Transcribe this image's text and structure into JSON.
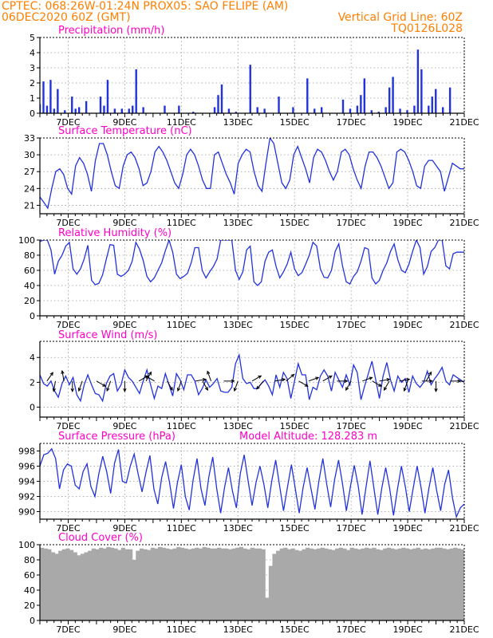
{
  "header": {
    "line1": "CPTEC:   068:26W-01:24N   PROX05: SAO FELIPE (AM)",
    "line2": "06DEC2020 60Z (GMT)",
    "right2": "Vertical Grid Line: 60Z",
    "right3": "TQ0126L028"
  },
  "colors": {
    "header": "#ff7f00",
    "title": "#ff00c8",
    "line": "#2233dd",
    "bar": "#2233dd",
    "cloud": "#a9a9a9",
    "grid": "#999999"
  },
  "x_axis": {
    "ticks": [
      {
        "pos": 1,
        "label": "7DEC"
      },
      {
        "pos": 3,
        "label": "9DEC"
      },
      {
        "pos": 5,
        "label": "11DEC"
      },
      {
        "pos": 7,
        "label": "13DEC"
      },
      {
        "pos": 9,
        "label": "15DEC"
      },
      {
        "pos": 11,
        "label": "17DEC"
      },
      {
        "pos": 13,
        "label": "19DEC"
      },
      {
        "pos": 15,
        "label": "21DEC"
      }
    ],
    "range_days": [
      0,
      15
    ]
  },
  "chart_data": [
    {
      "type": "bar",
      "title": "Precipitation (mm/h)",
      "ylim": [
        0,
        5
      ],
      "yticks": [
        "0",
        "1",
        "2",
        "3",
        "4",
        "5"
      ],
      "yticks_v": [
        0,
        1,
        2,
        3,
        4,
        5
      ],
      "values_at_6h": [
        0.6,
        2.1,
        0.5,
        2.2,
        0.3,
        1.6,
        0,
        0.2,
        0,
        1.1,
        0.3,
        0.4,
        0,
        0.8,
        0,
        0,
        0,
        1.1,
        0.5,
        2.2,
        0,
        0.3,
        0,
        0.3,
        0,
        0.3,
        0.5,
        2.9,
        0,
        0.4,
        0,
        0,
        0,
        0,
        0,
        0.5,
        0,
        0,
        0,
        0.5,
        0,
        0,
        0,
        0.1,
        0,
        0,
        0,
        0,
        0,
        0.4,
        1.2,
        1.9,
        0,
        0.3,
        0,
        0.1,
        0,
        0,
        0,
        3.2,
        0,
        0.4,
        0,
        0.3,
        0,
        0,
        0,
        1.1,
        0,
        0,
        0,
        0.4,
        0,
        0,
        0,
        2.3,
        0,
        0.3,
        0,
        0.4,
        0,
        0,
        0,
        0,
        0,
        0.9,
        0,
        0.3,
        0,
        0.5,
        1.2,
        2.3,
        0,
        0.2,
        0,
        0.1,
        0,
        0.4,
        1.7,
        2.4,
        0,
        0.3,
        0,
        0.2,
        0,
        0.5,
        4.2,
        2.9,
        0,
        0.5,
        1.1,
        1.6,
        0,
        0.4,
        0,
        1.7,
        0,
        0,
        0,
        0
      ]
    },
    {
      "type": "line",
      "title": "Surface Temperature (nC)",
      "ylim": [
        19.5,
        33
      ],
      "yticks": [
        "21",
        "24",
        "27",
        "30",
        "33"
      ],
      "yticks_v": [
        21,
        24,
        27,
        30,
        33
      ],
      "values_at_6h": [
        22.5,
        21.5,
        20.5,
        24,
        27,
        27.5,
        26.5,
        24,
        23,
        28,
        29.5,
        28.5,
        26.5,
        23.5,
        29,
        32,
        32,
        30,
        27,
        24.5,
        24,
        28,
        30,
        30.5,
        29.5,
        27.5,
        24.5,
        25,
        27,
        30.5,
        31.5,
        30.5,
        29,
        27,
        25,
        24,
        26.5,
        30,
        31,
        30,
        28,
        25.5,
        24,
        24,
        30,
        30.5,
        28.5,
        26.5,
        25,
        23,
        28.5,
        30,
        31,
        30.5,
        27,
        24.5,
        23.5,
        28.5,
        33,
        32,
        28.5,
        25,
        24,
        25.5,
        30,
        31.5,
        29.5,
        27.5,
        25,
        29.5,
        31,
        30.5,
        29,
        27,
        25.5,
        27,
        30.5,
        31,
        30,
        27.5,
        25.5,
        24,
        28,
        30.5,
        30.5,
        29.5,
        28,
        26,
        24,
        25,
        30.5,
        31,
        30.5,
        29,
        27,
        24.5,
        24,
        28,
        29,
        29,
        28,
        27,
        23.5,
        26,
        28.5,
        28,
        27.5,
        27.5
      ]
    },
    {
      "type": "line",
      "title": "Relative Humidity (%)",
      "ylim": [
        0,
        100
      ],
      "yticks": [
        "0",
        "20",
        "40",
        "60",
        "80",
        "100"
      ],
      "yticks_v": [
        0,
        20,
        40,
        60,
        80,
        100
      ],
      "values_at_6h": [
        98,
        100,
        100,
        87,
        55,
        72,
        80,
        92,
        97,
        62,
        55,
        62,
        75,
        93,
        47,
        41,
        43,
        54,
        75,
        94,
        93,
        55,
        52,
        55,
        60,
        72,
        97,
        88,
        73,
        52,
        45,
        50,
        60,
        70,
        86,
        100,
        84,
        55,
        49,
        52,
        56,
        70,
        90,
        90,
        60,
        50,
        58,
        65,
        75,
        100,
        100,
        100,
        100,
        60,
        48,
        58,
        87,
        92,
        45,
        40,
        45,
        72,
        84,
        87,
        65,
        50,
        58,
        68,
        84,
        62,
        53,
        57,
        68,
        80,
        97,
        92,
        62,
        51,
        50,
        60,
        85,
        95,
        66,
        45,
        42,
        52,
        58,
        72,
        90,
        88,
        50,
        42,
        47,
        60,
        70,
        85,
        95,
        74,
        60,
        57,
        68,
        85,
        100,
        90,
        55,
        65,
        85,
        90,
        100,
        100,
        66,
        62,
        82,
        84,
        84,
        84
      ]
    },
    {
      "type": "line",
      "title": "Surface Wind (m/s)",
      "ylim": [
        -0.8,
        5.3
      ],
      "yticks": [
        "0",
        "2",
        "4"
      ],
      "yticks_v": [
        0,
        2,
        4
      ],
      "values_at_6h": [
        2.6,
        1.9,
        1.7,
        2.1,
        1.3,
        0.8,
        1.9,
        2.5,
        1.8,
        2.4,
        1.0,
        0.5,
        1.8,
        2.6,
        1.8,
        1.1,
        1.0,
        0.5,
        1.9,
        2.5,
        2.7,
        1.3,
        1.8,
        3.0,
        2.4,
        2.1,
        1.6,
        1.1,
        2.1,
        3.0,
        1.8,
        0.7,
        1.7,
        1.5,
        2.7,
        1.8,
        0.9,
        2.7,
        2.2,
        1.4,
        2.6,
        2.6,
        2.1,
        1.0,
        1.5,
        2.2,
        1.6,
        1.9,
        2.3,
        1.3,
        1.2,
        1.2,
        1.6,
        3.5,
        4.2,
        2.3,
        1.9,
        2.0,
        1.5,
        1.5,
        1.9,
        2.2,
        1.7,
        1.0,
        2.6,
        1.6,
        2.8,
        2.3,
        0.7,
        2.1,
        3.5,
        2.6,
        2.6,
        0.6,
        1.6,
        1.4,
        2.5,
        3.0,
        2.5,
        1.3,
        2.8,
        2.2,
        1.6,
        2.6,
        1.8,
        3.4,
        2.8,
        0.6,
        1.7,
        2.7,
        3.7,
        2.2,
        0.7,
        2.5,
        3.6,
        2.2,
        1.3,
        2.5,
        2.0,
        2.3,
        1.2,
        2.5,
        1.9,
        1.6,
        2.0,
        2.9,
        1.8,
        2.3,
        2.7,
        3.2,
        2.1,
        1.8,
        2.6,
        2.4,
        2.2,
        2.0
      ]
    },
    {
      "type": "line",
      "title": "Surface Pressure (hPa)",
      "subtitle": "Model Altitude: 128.283 m",
      "ylim": [
        989,
        999
      ],
      "yticks": [
        "990",
        "992",
        "994",
        "996",
        "998"
      ],
      "yticks_v": [
        990,
        992,
        994,
        996,
        998
      ],
      "values_at_6h": [
        996,
        997.5,
        997.7,
        998.3,
        997,
        993,
        995.5,
        996.3,
        996,
        993.5,
        993,
        995.3,
        996.3,
        993.3,
        992,
        995,
        997.3,
        995.3,
        992.4,
        996.4,
        998.2,
        994,
        993.8,
        996,
        997.6,
        995,
        992.6,
        995.2,
        997.4,
        993,
        991,
        994.5,
        996.6,
        993.8,
        990.4,
        993.8,
        996.2,
        992,
        990.2,
        994.2,
        997,
        993,
        990.8,
        994.6,
        997.2,
        993,
        989.8,
        993.2,
        995.8,
        992.7,
        990.5,
        995,
        997.5,
        994,
        990.8,
        993.8,
        996,
        993.6,
        990.5,
        994,
        996.8,
        993.4,
        990.1,
        993.2,
        996.2,
        993,
        989.8,
        993.2,
        995.8,
        993,
        990.3,
        994,
        997,
        993.6,
        990.6,
        994.2,
        996.8,
        993.7,
        990.1,
        993.2,
        996.1,
        993.4,
        989.6,
        993.3,
        996.7,
        993.1,
        989.6,
        993.1,
        995.8,
        993.1,
        989.5,
        993,
        996,
        993.3,
        990,
        993.1,
        996,
        993.2,
        989.8,
        993.1,
        995.8,
        992.7,
        990.1,
        993.6,
        995.5,
        991.8,
        989.3,
        990.5,
        991
      ]
    },
    {
      "type": "area",
      "title": "Cloud Cover (%)",
      "ylim": [
        0,
        100
      ],
      "yticks": [
        "0",
        "20",
        "40",
        "60",
        "80",
        "100"
      ],
      "yticks_v": [
        0,
        20,
        40,
        60,
        80,
        100
      ],
      "values_at_6h": [
        96,
        95,
        94,
        90,
        88,
        92,
        94,
        95,
        93,
        90,
        86,
        88,
        90,
        92,
        95,
        94,
        96,
        95,
        97,
        96,
        95,
        93,
        96,
        94,
        94,
        80,
        92,
        95,
        94,
        93,
        96,
        95,
        97,
        96,
        95,
        94,
        95,
        97,
        96,
        95,
        94,
        95,
        96,
        95,
        97,
        96,
        95,
        95,
        96,
        95,
        95,
        94,
        95,
        96,
        97,
        95,
        94,
        96,
        95,
        95,
        94,
        30,
        72,
        88,
        92,
        95,
        96,
        94,
        95,
        93,
        92,
        94,
        96,
        95,
        94,
        95,
        96,
        95,
        94,
        93,
        95,
        96,
        95,
        93,
        96,
        95,
        94,
        95,
        96,
        95,
        96,
        94,
        93,
        95,
        96,
        95,
        94,
        95,
        96,
        95,
        94,
        95,
        96,
        94,
        95,
        94,
        95,
        96,
        96,
        95,
        94,
        95,
        96,
        95,
        94,
        95
      ]
    }
  ],
  "wind_arrows": [
    {
      "d": 0.25,
      "dir": 35
    },
    {
      "d": 0.55,
      "dir": 190
    },
    {
      "d": 0.85,
      "dir": 350
    },
    {
      "d": 1.15,
      "dir": 180
    },
    {
      "d": 1.5,
      "dir": 200
    },
    {
      "d": 2.0,
      "dir": 120
    },
    {
      "d": 2.5,
      "dir": 200
    },
    {
      "d": 3.0,
      "dir": 180
    },
    {
      "d": 3.5,
      "dir": 60
    },
    {
      "d": 3.75,
      "dir": 30
    },
    {
      "d": 4.05,
      "dir": 300
    },
    {
      "d": 4.5,
      "dir": 150
    },
    {
      "d": 5.0,
      "dir": 200
    },
    {
      "d": 5.5,
      "dir": 80
    },
    {
      "d": 5.75,
      "dir": 150
    },
    {
      "d": 6.05,
      "dir": 340
    },
    {
      "d": 6.5,
      "dir": 90
    },
    {
      "d": 7.0,
      "dir": 200
    },
    {
      "d": 7.5,
      "dir": 60
    },
    {
      "d": 7.9,
      "dir": 220
    },
    {
      "d": 8.3,
      "dir": 80
    },
    {
      "d": 8.7,
      "dir": 50
    },
    {
      "d": 9.15,
      "dir": 120
    },
    {
      "d": 9.5,
      "dir": 70
    },
    {
      "d": 10.0,
      "dir": 60
    },
    {
      "d": 10.5,
      "dir": 90
    },
    {
      "d": 11.0,
      "dir": 210
    },
    {
      "d": 11.4,
      "dir": 70
    },
    {
      "d": 11.75,
      "dir": 120
    },
    {
      "d": 12.0,
      "dir": 80
    },
    {
      "d": 12.35,
      "dir": 210
    },
    {
      "d": 12.7,
      "dir": 80
    },
    {
      "d": 13.0,
      "dir": 200
    },
    {
      "d": 13.5,
      "dir": 90
    },
    {
      "d": 13.65,
      "dir": 30
    },
    {
      "d": 14.0,
      "dir": 180
    },
    {
      "d": 14.5,
      "dir": 90
    },
    {
      "d": 14.85,
      "dir": 100
    }
  ]
}
